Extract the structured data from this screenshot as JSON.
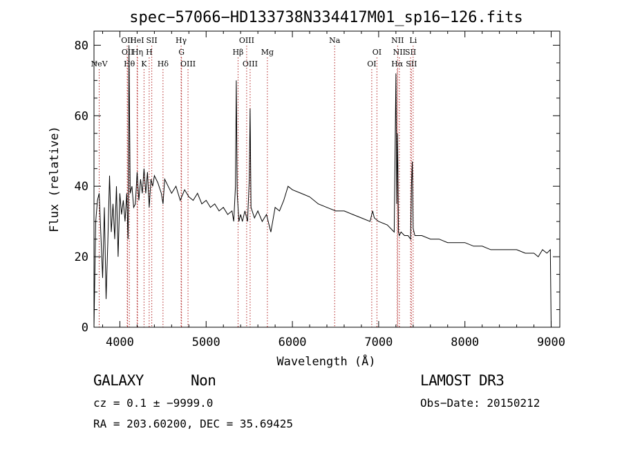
{
  "chart_data": {
    "type": "line",
    "title": "spec−57066−HD133738N334417M01_sp16−126.fits",
    "xlabel": "Wavelength (Å)",
    "ylabel": "Flux (relative)",
    "xlim": [
      3700,
      9100
    ],
    "ylim": [
      0,
      84
    ],
    "xticks": [
      4000,
      5000,
      6000,
      7000,
      8000,
      9000
    ],
    "yticks": [
      0,
      20,
      40,
      60,
      80
    ],
    "grid": false,
    "series": [
      {
        "name": "spectrum",
        "x": [
          3700,
          3720,
          3740,
          3760,
          3780,
          3800,
          3820,
          3840,
          3860,
          3880,
          3900,
          3920,
          3940,
          3960,
          3980,
          4000,
          4020,
          4040,
          4060,
          4080,
          4095,
          4100,
          4105,
          4120,
          4140,
          4160,
          4180,
          4200,
          4220,
          4240,
          4260,
          4280,
          4300,
          4320,
          4340,
          4360,
          4380,
          4400,
          4440,
          4480,
          4500,
          4520,
          4560,
          4600,
          4650,
          4700,
          4750,
          4800,
          4850,
          4900,
          4950,
          5000,
          5050,
          5100,
          5150,
          5200,
          5250,
          5300,
          5320,
          5340,
          5350,
          5360,
          5380,
          5400,
          5420,
          5450,
          5480,
          5500,
          5510,
          5520,
          5560,
          5600,
          5650,
          5700,
          5750,
          5800,
          5850,
          5900,
          5950,
          6000,
          6100,
          6200,
          6300,
          6400,
          6500,
          6600,
          6700,
          6800,
          6900,
          6930,
          6950,
          7000,
          7100,
          7180,
          7200,
          7210,
          7220,
          7230,
          7240,
          7260,
          7300,
          7340,
          7370,
          7380,
          7390,
          7400,
          7420,
          7500,
          7600,
          7700,
          7800,
          7900,
          8000,
          8100,
          8200,
          8300,
          8400,
          8500,
          8600,
          8700,
          8800,
          8850,
          8900,
          8950,
          8990,
          9000,
          9005
        ],
        "y": [
          0,
          30,
          36,
          38,
          26,
          14,
          34,
          8,
          24,
          43,
          27,
          35,
          25,
          40,
          20,
          38,
          32,
          36,
          30,
          38,
          25,
          35,
          80,
          38,
          40,
          34,
          35,
          44,
          36,
          42,
          38,
          45,
          38,
          44,
          34,
          42,
          40,
          43,
          41,
          38,
          35,
          42,
          40,
          38,
          40,
          36,
          39,
          37,
          36,
          38,
          35,
          36,
          34,
          35,
          33,
          34,
          32,
          33,
          30,
          40,
          70,
          38,
          30,
          32,
          30,
          33,
          30,
          42,
          62,
          34,
          31,
          33,
          30,
          32,
          27,
          34,
          33,
          36,
          40,
          39,
          38,
          37,
          35,
          34,
          33,
          33,
          32,
          31,
          30,
          33,
          31,
          30,
          29,
          27,
          72,
          35,
          55,
          27,
          26,
          27,
          26,
          26,
          25,
          40,
          47,
          28,
          26,
          26,
          25,
          25,
          24,
          24,
          24,
          23,
          23,
          22,
          22,
          22,
          22,
          21,
          21,
          20,
          22,
          21,
          22,
          0,
          0
        ]
      }
    ],
    "lines": [
      {
        "label": "NeV",
        "x": 3760,
        "row": 3
      },
      {
        "label": "OII",
        "x": 4085,
        "row": 1
      },
      {
        "label": "OII",
        "x": 4090,
        "row": 2
      },
      {
        "label": "Hθ",
        "x": 4110,
        "row": 3
      },
      {
        "label": "HeI",
        "x": 4200,
        "row": 1
      },
      {
        "label": "Hη",
        "x": 4205,
        "row": 2
      },
      {
        "label": "K",
        "x": 4280,
        "row": 3
      },
      {
        "label": "H",
        "x": 4340,
        "row": 2
      },
      {
        "label": "SII",
        "x": 4370,
        "row": 1
      },
      {
        "label": "Hδ",
        "x": 4500,
        "row": 3
      },
      {
        "label": "Hγ",
        "x": 4710,
        "row": 1
      },
      {
        "label": "G",
        "x": 4715,
        "row": 2
      },
      {
        "label": "OIII",
        "x": 4790,
        "row": 3
      },
      {
        "label": "OIII",
        "x": 5470,
        "row": 1
      },
      {
        "label": "Hβ",
        "x": 5370,
        "row": 2
      },
      {
        "label": "OIII",
        "x": 5510,
        "row": 3
      },
      {
        "label": "Mg",
        "x": 5710,
        "row": 2
      },
      {
        "label": "Na",
        "x": 6490,
        "row": 1
      },
      {
        "label": "OI",
        "x": 6980,
        "row": 2
      },
      {
        "label": "OI",
        "x": 6920,
        "row": 3
      },
      {
        "label": "NII",
        "x": 7220,
        "row": 1
      },
      {
        "label": "Li",
        "x": 7400,
        "row": 1
      },
      {
        "label": "NII",
        "x": 7240,
        "row": 2
      },
      {
        "label": "SII",
        "x": 7370,
        "row": 2
      },
      {
        "label": "Hα",
        "x": 7215,
        "row": 3
      },
      {
        "label": "SII",
        "x": 7380,
        "row": 3
      }
    ],
    "line_color": "#000000",
    "marker_color": "#b22222"
  },
  "info": {
    "class_label": "GALAXY",
    "subclass_label": "Non",
    "survey_label": "LAMOST DR3",
    "cz_text": "cz = 0.1 ± −9999.0",
    "obsdate_text": "Obs−Date: 20150212",
    "radec_text": "RA = 203.60200, DEC =  35.69425"
  }
}
